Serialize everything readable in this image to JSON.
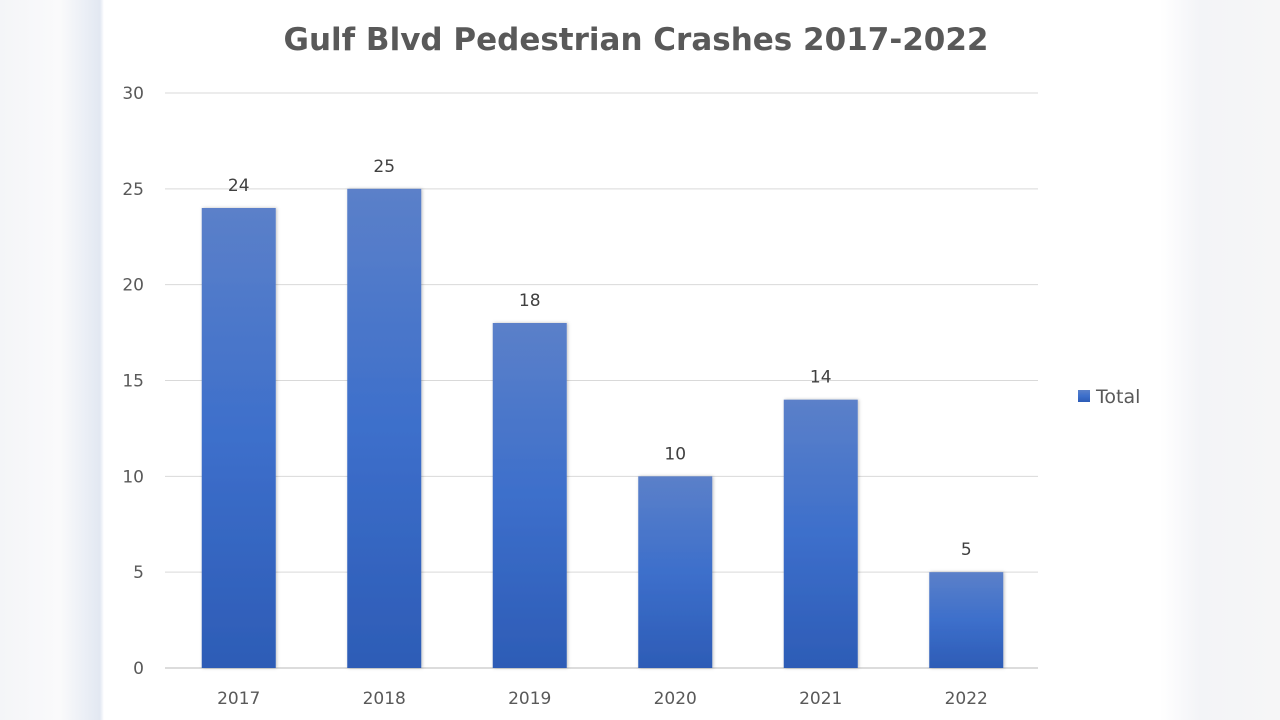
{
  "chart_data": {
    "type": "bar",
    "title": "Gulf Blvd Pedestrian Crashes 2017-2022",
    "categories": [
      "2017",
      "2018",
      "2019",
      "2020",
      "2021",
      "2022"
    ],
    "series": [
      {
        "name": "Total",
        "values": [
          24,
          25,
          18,
          10,
          14,
          5
        ]
      }
    ],
    "xlabel": "",
    "ylabel": "",
    "ylim": [
      0,
      30
    ],
    "yticks": [
      0,
      5,
      10,
      15,
      20,
      25,
      30
    ],
    "grid": true,
    "legend": "right",
    "data_labels": true,
    "colors": {
      "bar_top": "#5b80c9",
      "bar_bottom": "#2d5cb6",
      "grid": "#d9d9d9",
      "text": "#595959"
    }
  }
}
